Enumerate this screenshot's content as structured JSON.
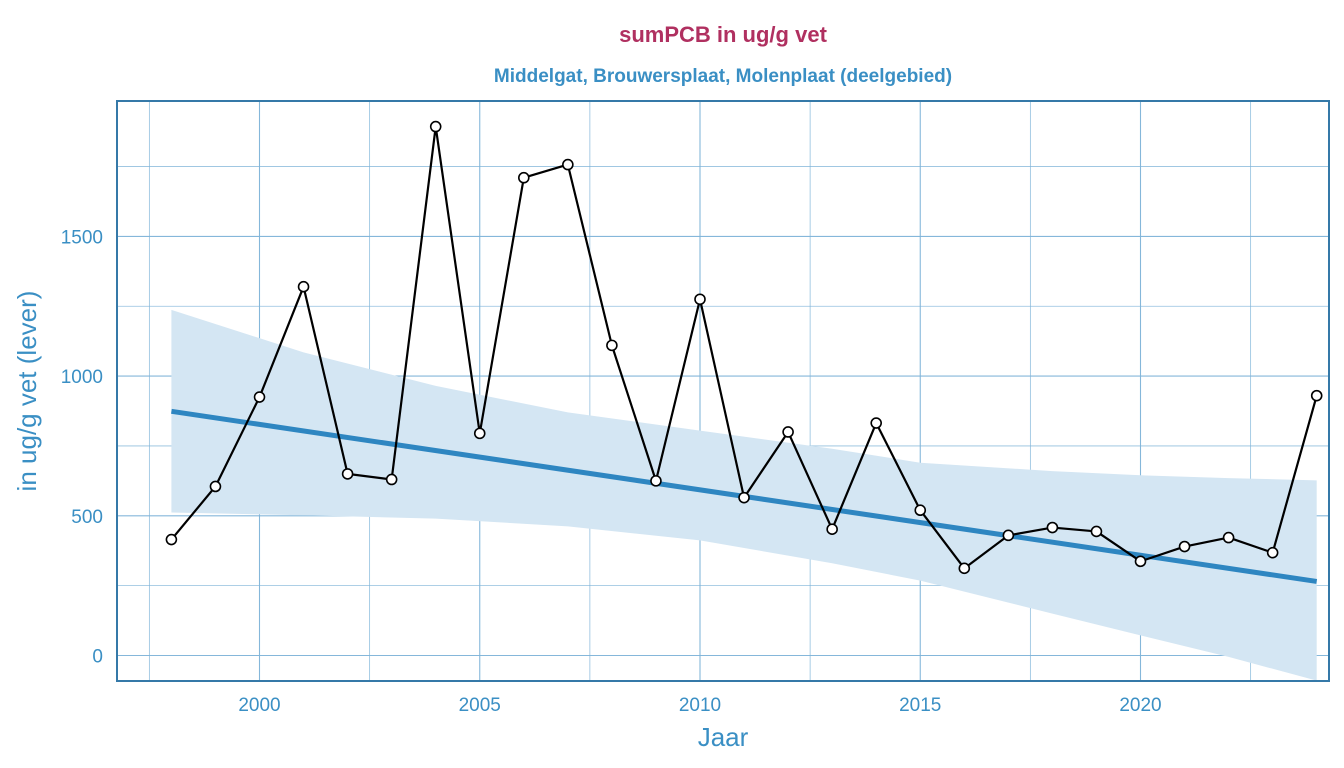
{
  "chart_data": {
    "type": "line",
    "title": "sumPCB in ug/g vet",
    "subtitle": "Middelgat, Brouwersplaat, Molenplaat (deelgebied)",
    "xlabel": "Jaar",
    "ylabel": "in ug/g vet (lever)",
    "xlim": [
      1997.25,
      2024.25
    ],
    "ylim": [
      -90,
      1960
    ],
    "x_ticks": [
      2000,
      2005,
      2010,
      2015,
      2020
    ],
    "y_ticks": [
      0,
      500,
      1000,
      1500
    ],
    "grid": true,
    "legend": null,
    "x": [
      1998,
      1999,
      2000,
      2001,
      2002,
      2003,
      2004,
      2005,
      2006,
      2007,
      2008,
      2009,
      2010,
      2011,
      2012,
      2013,
      2014,
      2015,
      2016,
      2017,
      2018,
      2019,
      2020,
      2021,
      2022,
      2023,
      2024
    ],
    "series": [
      {
        "name": "sumPCB (lever)",
        "type": "line+markers",
        "color": "#000000",
        "values": [
          415,
          605,
          925,
          1320,
          650,
          630,
          1893,
          795,
          1710,
          1757,
          1110,
          625,
          1275,
          565,
          800,
          452,
          832,
          520,
          312,
          430,
          458,
          444,
          337,
          390,
          422,
          368,
          930
        ]
      },
      {
        "name": "trend",
        "type": "line",
        "color": "#2e86c1",
        "x": [
          1998,
          2024
        ],
        "values": [
          874,
          265
        ]
      },
      {
        "name": "confidence-band",
        "type": "area",
        "color": "#d4e6f3",
        "x": [
          1998,
          2001,
          2004,
          2007,
          2010,
          2013,
          2015,
          2018,
          2020,
          2022,
          2024
        ],
        "upper": [
          1237,
          1085,
          965,
          870,
          805,
          740,
          690,
          660,
          645,
          635,
          627
        ],
        "lower": [
          512,
          502,
          490,
          462,
          412,
          330,
          268,
          150,
          72,
          -5,
          -90
        ]
      }
    ]
  },
  "colors": {
    "title": "#b03060",
    "accent": "#3a8fc4",
    "grid": "#7fb4d9",
    "frame": "#3579a8",
    "band": "#d4e6f3",
    "trend": "#2e86c1",
    "line": "#000000"
  }
}
